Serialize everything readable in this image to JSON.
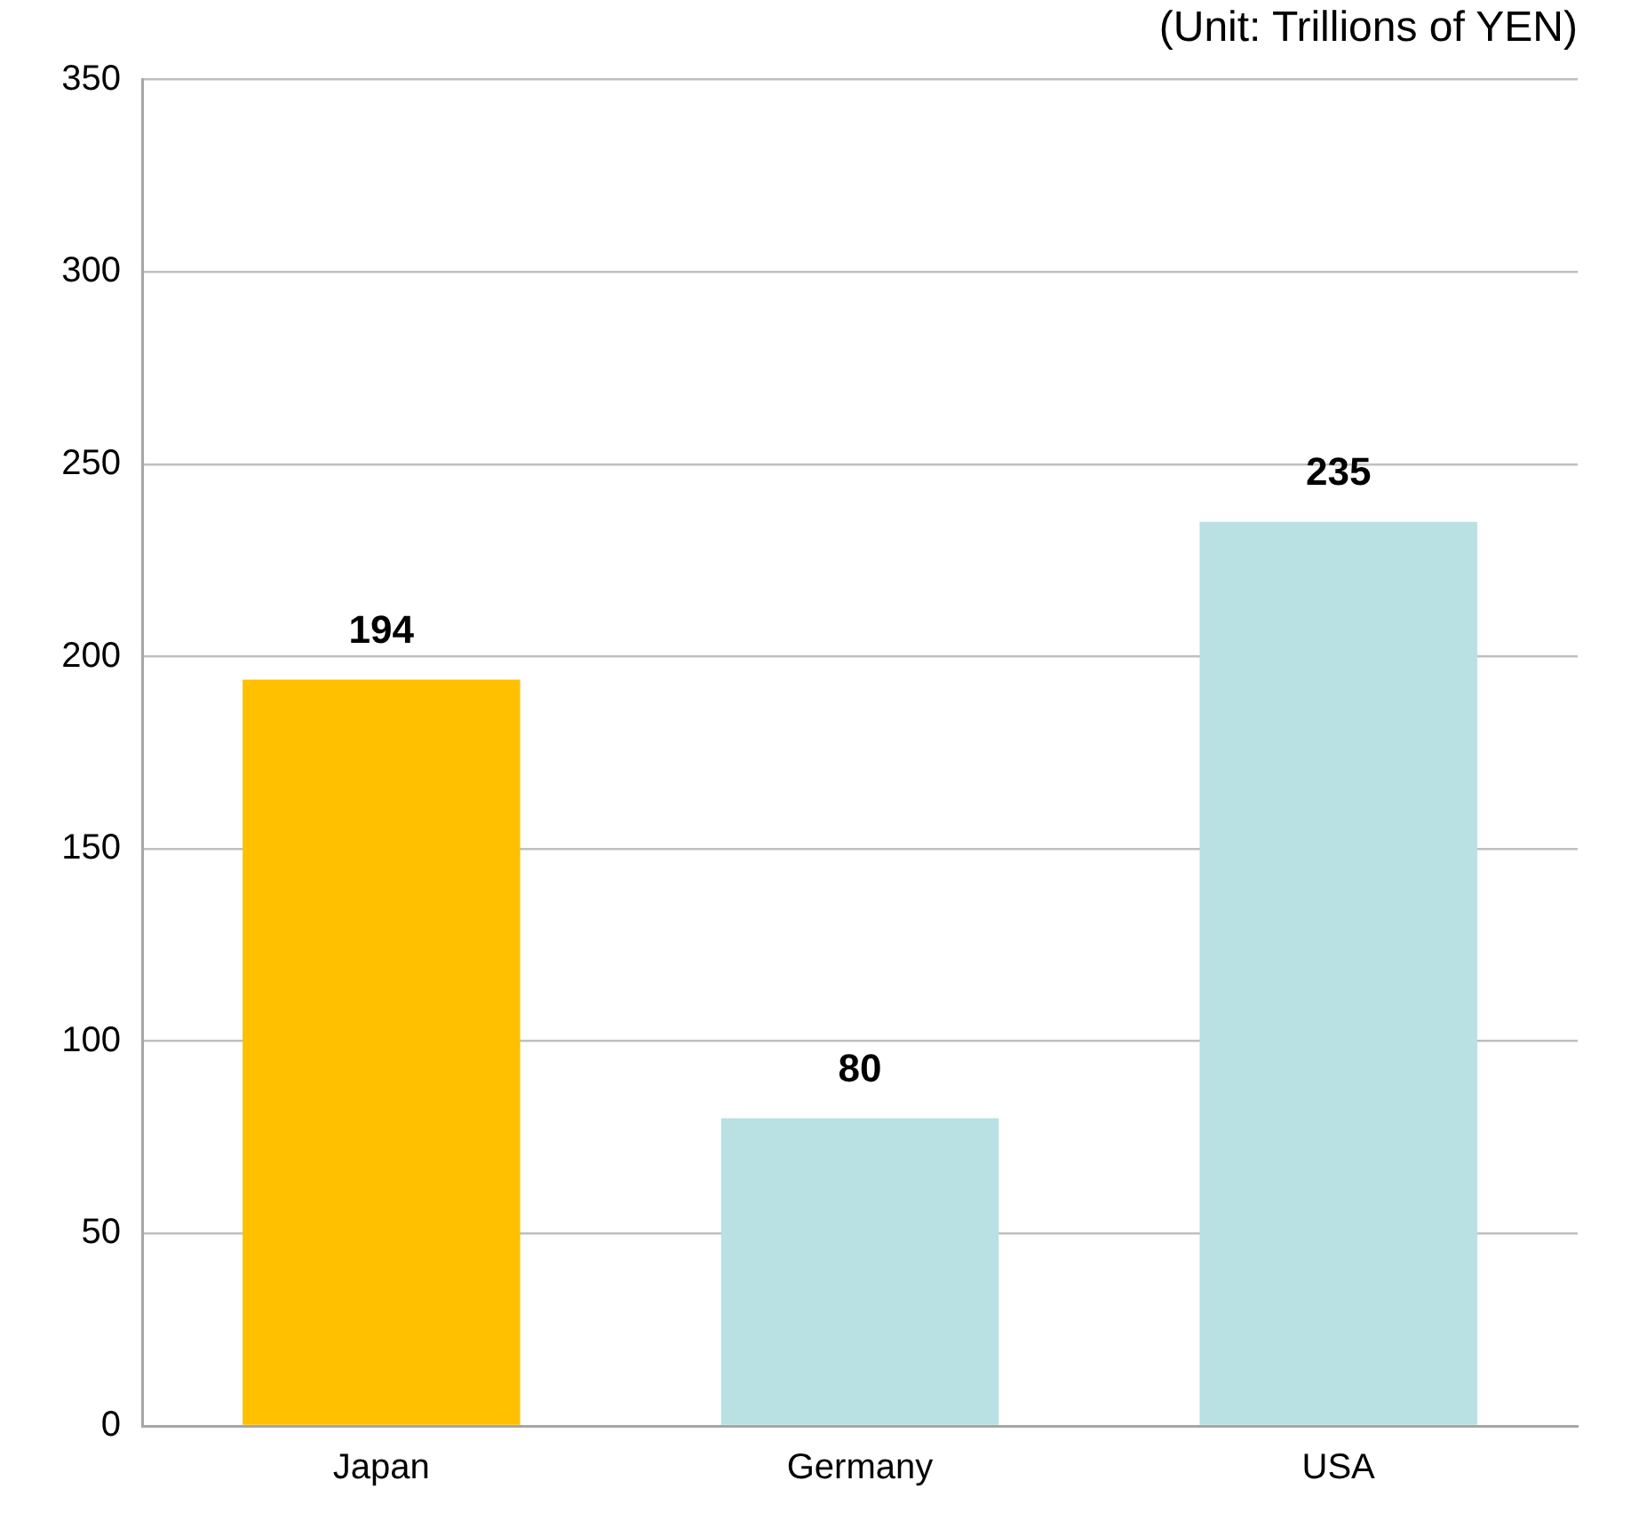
{
  "chart_data": {
    "type": "bar",
    "subtitle": "(Unit: Trillions of YEN)",
    "categories": [
      "Japan",
      "Germany",
      "USA"
    ],
    "values": [
      194,
      80,
      235
    ],
    "colors": [
      "#ffc000",
      "#b9e0e3",
      "#b9e0e3"
    ],
    "ylim": [
      0,
      350
    ],
    "yticks": [
      0,
      50,
      100,
      150,
      200,
      250,
      300,
      350
    ],
    "grid": "y",
    "data_labels": true,
    "legend": false
  }
}
